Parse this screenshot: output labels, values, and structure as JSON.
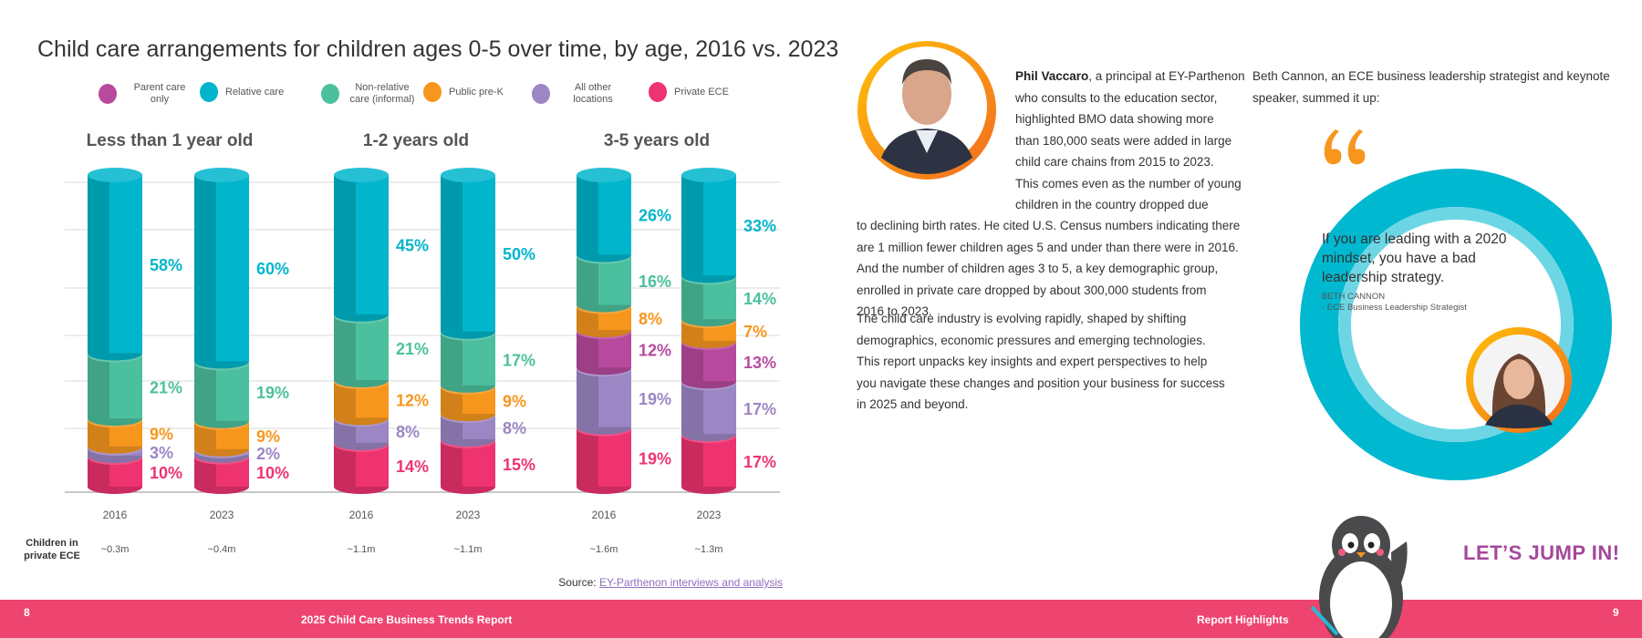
{
  "left_page": {
    "title": "Child care arrangements for children ages 0-5 over time, by age, 2016 vs. 2023",
    "legend": [
      {
        "label": "Parent care only",
        "color": "#b84a9e"
      },
      {
        "label": "Relative care",
        "color": "#00b5cc"
      },
      {
        "label": "Non-relative care (informal)",
        "color": "#4cc09e"
      },
      {
        "label": "Public pre-K",
        "color": "#f7961d"
      },
      {
        "label": "All other locations",
        "color": "#9c86c4"
      },
      {
        "label": "Private ECE",
        "color": "#ee3370"
      }
    ],
    "children_label": "Children in private ECE",
    "source_prefix": "Source: ",
    "source_link": "EY-Parthenon interviews and analysis",
    "page_number": "8",
    "footer_title": "2025 Child Care Business Trends Report"
  },
  "chart_data": {
    "type": "bar",
    "stacked": true,
    "title": "Child care arrangements for children ages 0-5 over time, by age, 2016 vs. 2023",
    "groups": [
      "Less than 1 year old",
      "1-2 years old",
      "3-5 years old"
    ],
    "columns": [
      {
        "group": "Less than 1 year old",
        "year": "2016",
        "children_private_ece": "~0.3m",
        "values": {
          "Private ECE": 10,
          "All other locations": 3,
          "Parent care only": null,
          "Public pre-K": 9,
          "Non-relative care (informal)": 21,
          "Relative care": 58
        }
      },
      {
        "group": "Less than 1 year old",
        "year": "2023",
        "children_private_ece": "~0.4m",
        "values": {
          "Private ECE": 10,
          "All other locations": 2,
          "Parent care only": null,
          "Public pre-K": 9,
          "Non-relative care (informal)": 19,
          "Relative care": 60
        }
      },
      {
        "group": "1-2 years old",
        "year": "2016",
        "children_private_ece": "~1.1m",
        "values": {
          "Private ECE": 14,
          "All other locations": 8,
          "Parent care only": null,
          "Public pre-K": 12,
          "Non-relative care (informal)": 21,
          "Relative care": 45
        }
      },
      {
        "group": "1-2 years old",
        "year": "2023",
        "children_private_ece": "~1.1m",
        "values": {
          "Private ECE": 15,
          "All other locations": 8,
          "Parent care only": null,
          "Public pre-K": 9,
          "Non-relative care (informal)": 17,
          "Relative care": 50
        }
      },
      {
        "group": "3-5 years old",
        "year": "2016",
        "children_private_ece": "~1.6m",
        "values": {
          "Private ECE": 19,
          "All other locations": 19,
          "Parent care only": 12,
          "Public pre-K": 8,
          "Non-relative care (informal)": 16,
          "Relative care": 26
        }
      },
      {
        "group": "3-5 years old",
        "year": "2023",
        "children_private_ece": "~1.3m",
        "values": {
          "Private ECE": 17,
          "All other locations": 17,
          "Parent care only": 13,
          "Public pre-K": 7,
          "Non-relative care (informal)": 14,
          "Relative care": 33
        }
      }
    ],
    "stack_order": [
      "Private ECE",
      "All other locations",
      "Parent care only",
      "Public pre-K",
      "Non-relative care (informal)",
      "Relative care"
    ],
    "unit": "%",
    "grid": true
  },
  "right_page": {
    "phil_name": "Phil Vaccaro",
    "phil_lines": [
      ", a principal at EY-Parthenon",
      "who consults to the education sector,",
      "highlighted BMO data showing more",
      "than 180,000 seats were added in large",
      "child care chains from 2015 to 2023.",
      "This comes even as the number of young",
      "children in the country dropped due"
    ],
    "para1_lines": [
      "to declining birth rates. He cited U.S. Census numbers indicating there",
      "are 1 million fewer children ages 5 and under than there were in 2016.",
      "And the number of children ages 3 to 5, a key demographic group,",
      "enrolled in private care dropped by about 300,000 students from",
      "2016 to 2023."
    ],
    "para2_lines": [
      "The child care industry is evolving rapidly, shaped by shifting",
      "demographics, economic pressures and emerging technologies.",
      "This report unpacks key insights and expert perspectives to help",
      "you navigate these changes and position your business for success",
      "in 2025 and beyond."
    ],
    "beth_intro_lines": [
      "Beth Cannon, an ECE business leadership strategist and keynote",
      "speaker, summed it up:"
    ],
    "quote": "If you are leading with a 2020 mindset, you have a bad leadership strategy.",
    "quote_author": "BETH CANNON",
    "quote_role": "- ECE Business Leadership Strategist",
    "cta": "LET’S JUMP IN!",
    "footer_title": "Report Highlights",
    "page_number": "9",
    "colors": {
      "ring": "#00b8d0",
      "ring_inner": "#6dd6e4",
      "accent_orange": "#f7961d",
      "footer": "#ee4470",
      "cta": "#a5479b"
    }
  }
}
